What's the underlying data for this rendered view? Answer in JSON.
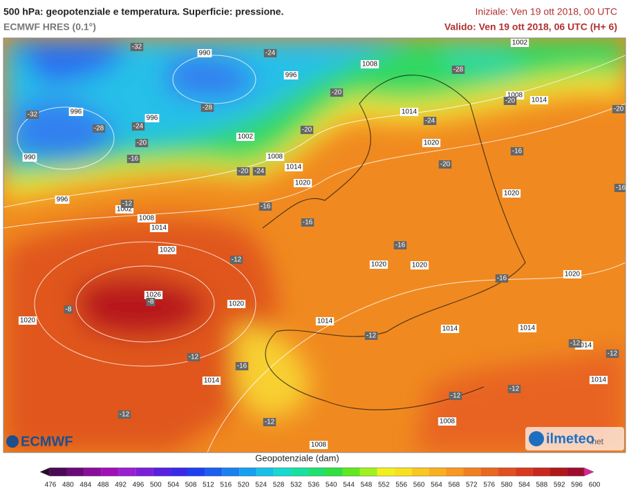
{
  "header": {
    "title": "500 hPa: geopotenziale e temperatura. Superficie: pressione.",
    "model": "ECMWF HRES (0.1°)",
    "init": "Iniziale: Ven 19 ott 2018, 00 UTC",
    "valid": "Valido: Ven 19 ott 2018, 06 UTC (H+ 6)"
  },
  "map": {
    "pressure_labels": [
      990,
      996,
      1008,
      1002,
      996,
      996,
      1002,
      1008,
      1014,
      1020,
      990,
      996,
      1002,
      1008,
      1014,
      1020,
      1014,
      1020,
      1008,
      1014,
      1020,
      1020,
      1020,
      1020,
      1026,
      1020,
      1020,
      1014,
      1014,
      1014,
      1014,
      1014,
      1014,
      1008,
      1008
    ],
    "temperature_labels": [
      -32,
      -24,
      -28,
      -20,
      -32,
      -28,
      -24,
      -20,
      -28,
      -16,
      -20,
      -20,
      -24,
      -24,
      -20,
      -20,
      -20,
      -16,
      -16,
      -16,
      -12,
      -16,
      -16,
      -12,
      -16,
      -8,
      -8,
      -12,
      -12,
      -16,
      -12,
      -12,
      -12,
      -12,
      -12,
      -12
    ]
  },
  "colorbar": {
    "title": "Geopotenziale (dam)",
    "ticks": [
      476,
      480,
      484,
      488,
      492,
      496,
      500,
      504,
      508,
      512,
      516,
      520,
      524,
      528,
      532,
      536,
      540,
      544,
      548,
      552,
      556,
      560,
      564,
      568,
      572,
      576,
      580,
      584,
      588,
      592,
      596,
      600
    ],
    "colors": [
      "#2b0a2f",
      "#4a0a55",
      "#6a0a78",
      "#8a0e9a",
      "#a010b8",
      "#9a20d0",
      "#7a20d8",
      "#5a20e0",
      "#3a2ae8",
      "#2040f0",
      "#1a60f0",
      "#1a80f0",
      "#18a0f0",
      "#18c0e8",
      "#18d8d0",
      "#18e0a0",
      "#20e070",
      "#30e040",
      "#60e820",
      "#a0f020",
      "#f0f020",
      "#f8e020",
      "#f8c820",
      "#f8b020",
      "#f89820",
      "#f08020",
      "#e86820",
      "#e05020",
      "#d83a20",
      "#c82820",
      "#b01818",
      "#a00c2c",
      "#e020a0"
    ]
  },
  "logos": {
    "ecmwf": "ECMWF",
    "ilmeteo": "ilmeteo",
    "net": ".net"
  }
}
